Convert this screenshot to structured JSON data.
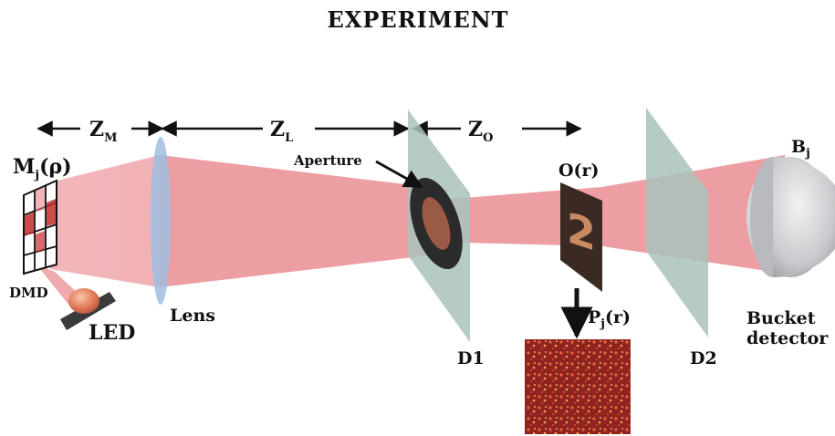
{
  "title": "EXPERIMENT",
  "labels": {
    "zm": "Z",
    "zm_sub": "M",
    "zl": "Z",
    "zl_sub": "L",
    "zo": "Z",
    "zo_sub": "O",
    "mask": "M",
    "mask_sub": "j",
    "mask_arg": "(ρ)",
    "dmd": "DMD",
    "led": "LED",
    "lens": "Lens",
    "aperture": "Aperture",
    "d1": "D1",
    "object": "O(r)",
    "pattern": "P",
    "pattern_sub": "j",
    "pattern_arg": "(r)",
    "d2": "D2",
    "bucket_symbol": "B",
    "bucket_sub": "j",
    "bucket_line1": "Bucket",
    "bucket_line2": "detector"
  },
  "object_digit": "2",
  "colors": {
    "beam": "#e9868c",
    "diffuser": "#a9c2bb",
    "lens": "#9fbde0",
    "bucket": "#d2d3d6",
    "led": "#e07a5a",
    "speckle": "#b4312a",
    "arrow": "#111111"
  }
}
